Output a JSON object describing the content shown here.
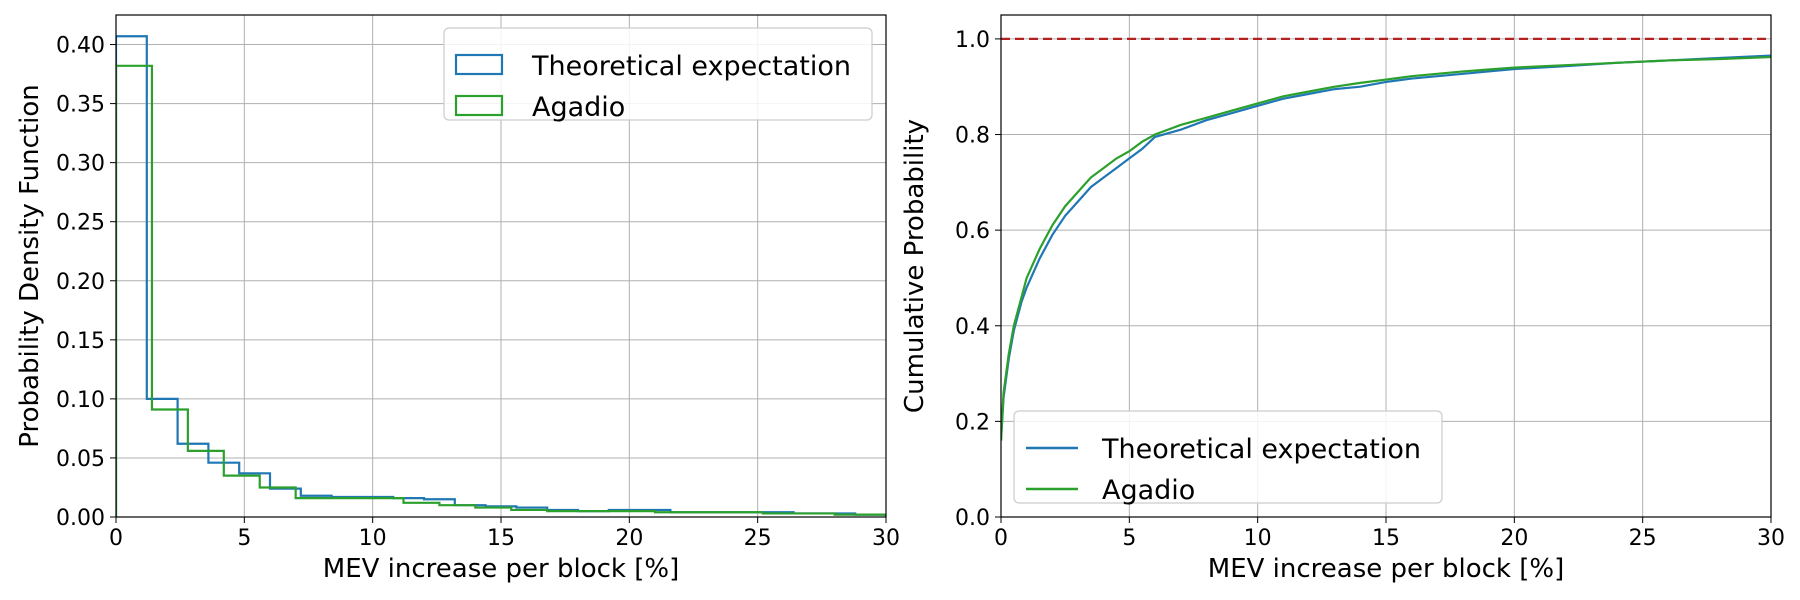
{
  "chart_data": [
    {
      "type": "step-histogram",
      "title": "",
      "xlabel": "MEV increase per block [%]",
      "ylabel": "Probability Density Function",
      "xlim": [
        0,
        30
      ],
      "ylim": [
        0,
        0.425
      ],
      "xticks": [
        0,
        5,
        10,
        15,
        20,
        25,
        30
      ],
      "xtick_labels": [
        "0",
        "5",
        "10",
        "15",
        "20",
        "25",
        "30"
      ],
      "yticks": [
        0,
        0.05,
        0.1,
        0.15,
        0.2,
        0.25,
        0.3,
        0.35,
        0.4
      ],
      "ytick_labels": [
        "0.00",
        "0.05",
        "0.10",
        "0.15",
        "0.20",
        "0.25",
        "0.30",
        "0.35",
        "0.40"
      ],
      "grid": true,
      "legend_location": "upper right",
      "series": [
        {
          "name": "Theoretical expectation",
          "color": "#1f77b4",
          "bin_edges": [
            0,
            1.2,
            2.4,
            3.6,
            4.8,
            6,
            7.2,
            8.4,
            9.6,
            10.8,
            12,
            13.2,
            14.4,
            15.6,
            16.8,
            18,
            19.2,
            20.4,
            21.6,
            22.8,
            24,
            25.2,
            26.4,
            27.6,
            28.8,
            30
          ],
          "values": [
            0.407,
            0.1,
            0.062,
            0.046,
            0.037,
            0.024,
            0.018,
            0.017,
            0.017,
            0.016,
            0.015,
            0.01,
            0.009,
            0.008,
            0.006,
            0.005,
            0.006,
            0.006,
            0.004,
            0.004,
            0.004,
            0.004,
            0.003,
            0.003,
            0.002
          ]
        },
        {
          "name": "Agadio",
          "color": "#2ca02c",
          "bin_edges": [
            0,
            1.4,
            2.8,
            4.2,
            5.6,
            7,
            8.4,
            9.8,
            11.2,
            12.6,
            14,
            15.4,
            16.8,
            18.2,
            19.6,
            21,
            22.4,
            23.8,
            25.2,
            26.6,
            28,
            29.4,
            30
          ],
          "values": [
            0.382,
            0.091,
            0.056,
            0.035,
            0.025,
            0.016,
            0.016,
            0.016,
            0.012,
            0.01,
            0.008,
            0.006,
            0.005,
            0.005,
            0.005,
            0.004,
            0.004,
            0.004,
            0.003,
            0.003,
            0.002,
            0.002
          ]
        }
      ]
    },
    {
      "type": "line",
      "title": "",
      "xlabel": "MEV increase per block [%]",
      "ylabel": "Cumulative Probability",
      "xlim": [
        0,
        30
      ],
      "ylim": [
        0,
        1.05
      ],
      "xticks": [
        0,
        5,
        10,
        15,
        20,
        25,
        30
      ],
      "xtick_labels": [
        "0",
        "5",
        "10",
        "15",
        "20",
        "25",
        "30"
      ],
      "yticks": [
        0,
        0.2,
        0.4,
        0.6,
        0.8,
        1.0
      ],
      "ytick_labels": [
        "0.0",
        "0.2",
        "0.4",
        "0.6",
        "0.8",
        "1.0"
      ],
      "grid": true,
      "legend_location": "lower left",
      "reference_line": {
        "y": 1.0,
        "color": "#b22222",
        "style": "dashed"
      },
      "series": [
        {
          "name": "Theoretical expectation",
          "color": "#1f77b4",
          "x": [
            0,
            0.1,
            0.3,
            0.5,
            0.8,
            1,
            1.5,
            2,
            2.5,
            3,
            3.5,
            4,
            4.5,
            5,
            5.5,
            6,
            7,
            8,
            9,
            10,
            11,
            12,
            13,
            14,
            15,
            16,
            17,
            18,
            19,
            20,
            22,
            24,
            26,
            28,
            30
          ],
          "y": [
            0.16,
            0.25,
            0.33,
            0.39,
            0.45,
            0.48,
            0.54,
            0.59,
            0.63,
            0.66,
            0.69,
            0.71,
            0.73,
            0.75,
            0.77,
            0.795,
            0.81,
            0.83,
            0.845,
            0.86,
            0.875,
            0.885,
            0.895,
            0.9,
            0.91,
            0.917,
            0.922,
            0.927,
            0.932,
            0.937,
            0.943,
            0.95,
            0.955,
            0.96,
            0.965
          ]
        },
        {
          "name": "Agadio",
          "color": "#2ca02c",
          "x": [
            0,
            0.1,
            0.3,
            0.5,
            0.8,
            1,
            1.5,
            2,
            2.5,
            3,
            3.5,
            4,
            4.5,
            5,
            5.5,
            6,
            7,
            8,
            9,
            10,
            11,
            12,
            13,
            14,
            15,
            16,
            17,
            18,
            19,
            20,
            22,
            24,
            26,
            28,
            30
          ],
          "y": [
            0.16,
            0.26,
            0.34,
            0.4,
            0.46,
            0.5,
            0.56,
            0.61,
            0.65,
            0.68,
            0.71,
            0.73,
            0.75,
            0.765,
            0.785,
            0.8,
            0.82,
            0.835,
            0.85,
            0.865,
            0.88,
            0.89,
            0.9,
            0.908,
            0.915,
            0.922,
            0.927,
            0.932,
            0.936,
            0.94,
            0.945,
            0.95,
            0.955,
            0.958,
            0.962
          ]
        }
      ]
    }
  ]
}
